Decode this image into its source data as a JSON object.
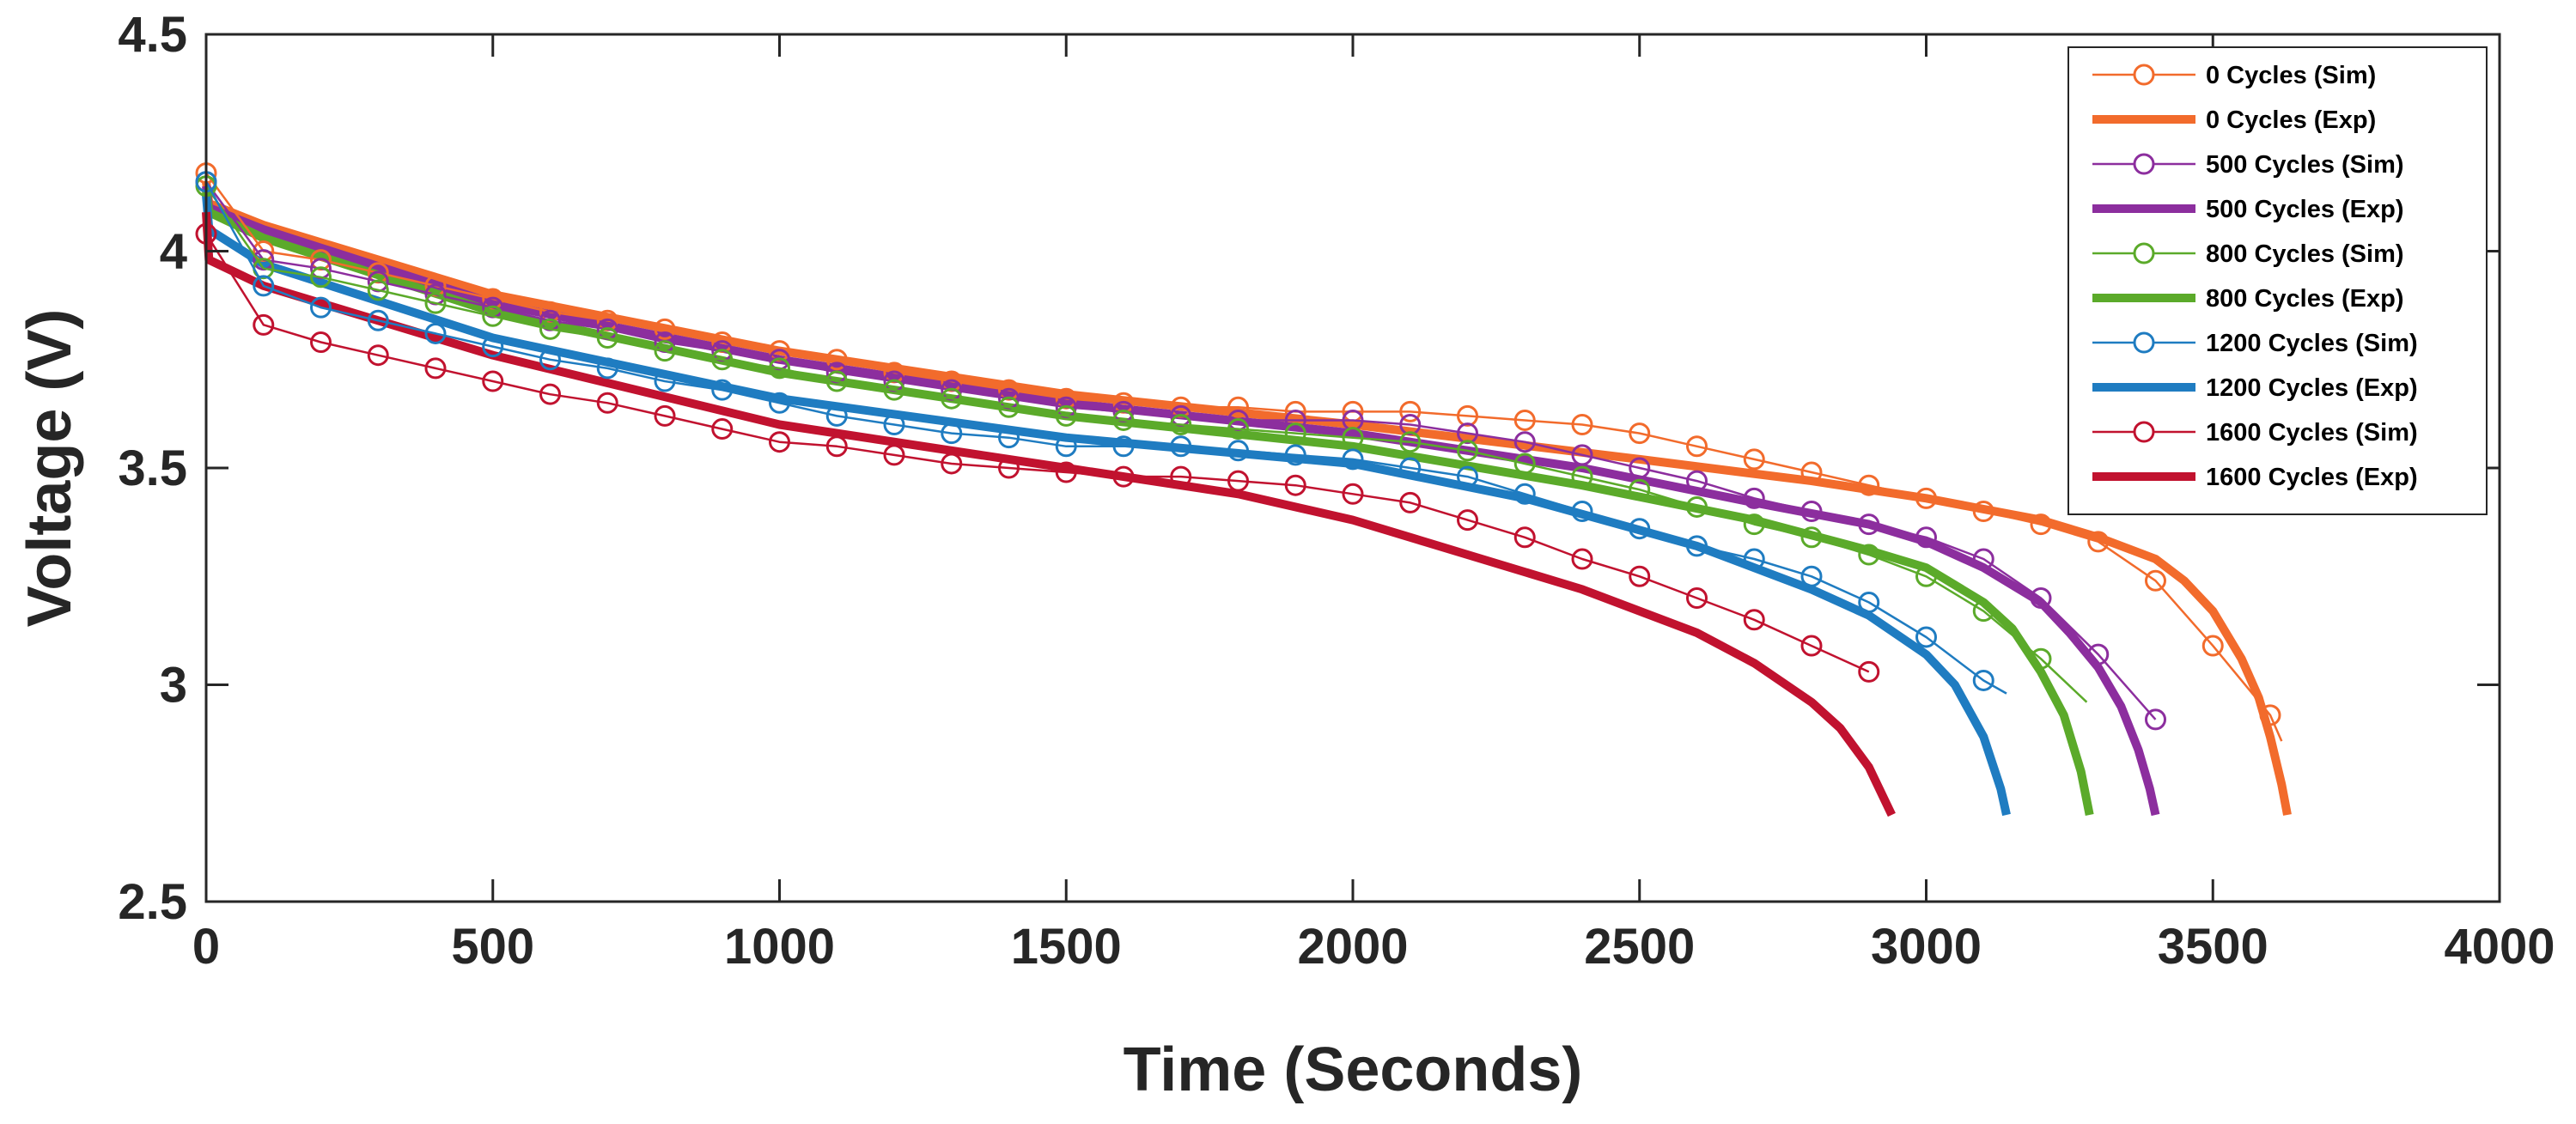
{
  "chart_data": {
    "type": "line",
    "title": "",
    "xlabel": "Time (Seconds)",
    "ylabel": "Voltage (V)",
    "xlim": [
      0,
      4000
    ],
    "ylim": [
      2.5,
      4.5
    ],
    "xticks": [
      0,
      500,
      1000,
      1500,
      2000,
      2500,
      3000,
      3500,
      4000
    ],
    "xtick_labels": [
      "0",
      "500",
      "1000",
      "1500",
      "2000",
      "2500",
      "3000",
      "3500",
      "4000"
    ],
    "yticks": [
      2.5,
      3,
      3.5,
      4,
      4.5
    ],
    "ytick_labels": [
      "2.5",
      "3",
      "3.5",
      "4",
      "4.5"
    ],
    "grid": false,
    "legend_position": "top-right",
    "series": [
      {
        "name": "0 Cycles (Sim)",
        "style": "sim",
        "color": "#F26B2C",
        "x": [
          0,
          100,
          200,
          300,
          400,
          500,
          600,
          700,
          800,
          900,
          1000,
          1100,
          1200,
          1300,
          1400,
          1500,
          1600,
          1700,
          1800,
          1900,
          2000,
          2100,
          2200,
          2300,
          2400,
          2500,
          2600,
          2700,
          2800,
          2900,
          3000,
          3100,
          3200,
          3300,
          3400,
          3500,
          3600,
          3620
        ],
        "y": [
          4.18,
          4.0,
          3.98,
          3.95,
          3.92,
          3.89,
          3.86,
          3.84,
          3.82,
          3.79,
          3.77,
          3.75,
          3.72,
          3.7,
          3.68,
          3.66,
          3.65,
          3.64,
          3.64,
          3.63,
          3.63,
          3.63,
          3.62,
          3.61,
          3.6,
          3.58,
          3.55,
          3.52,
          3.49,
          3.46,
          3.43,
          3.4,
          3.37,
          3.33,
          3.24,
          3.09,
          2.93,
          2.87
        ]
      },
      {
        "name": "0 Cycles (Exp)",
        "style": "exp",
        "color": "#F26B2C",
        "x": [
          0,
          5,
          100,
          500,
          1000,
          1500,
          2000,
          2500,
          2800,
          3000,
          3200,
          3300,
          3400,
          3450,
          3500,
          3550,
          3580,
          3600,
          3620,
          3630
        ],
        "y": [
          4.16,
          4.11,
          4.06,
          3.9,
          3.77,
          3.67,
          3.6,
          3.52,
          3.47,
          3.43,
          3.38,
          3.34,
          3.29,
          3.24,
          3.17,
          3.06,
          2.97,
          2.88,
          2.77,
          2.7
        ]
      },
      {
        "name": "500 Cycles (Sim)",
        "style": "sim",
        "color": "#8C2E9E",
        "x": [
          0,
          100,
          200,
          300,
          400,
          500,
          600,
          700,
          800,
          900,
          1000,
          1100,
          1200,
          1300,
          1400,
          1500,
          1600,
          1700,
          1800,
          1900,
          2000,
          2100,
          2200,
          2300,
          2400,
          2500,
          2600,
          2700,
          2800,
          2900,
          3000,
          3100,
          3200,
          3300,
          3400
        ],
        "y": [
          4.16,
          3.98,
          3.96,
          3.93,
          3.9,
          3.87,
          3.84,
          3.82,
          3.79,
          3.77,
          3.75,
          3.72,
          3.7,
          3.68,
          3.66,
          3.64,
          3.63,
          3.62,
          3.61,
          3.61,
          3.61,
          3.6,
          3.58,
          3.56,
          3.53,
          3.5,
          3.47,
          3.43,
          3.4,
          3.37,
          3.34,
          3.29,
          3.2,
          3.07,
          2.92
        ]
      },
      {
        "name": "500 Cycles (Exp)",
        "style": "exp",
        "color": "#8C2E9E",
        "x": [
          0,
          5,
          100,
          500,
          1000,
          1500,
          2000,
          2400,
          2700,
          2900,
          3000,
          3100,
          3200,
          3250,
          3300,
          3340,
          3370,
          3390,
          3400
        ],
        "y": [
          4.15,
          4.1,
          4.05,
          3.88,
          3.75,
          3.65,
          3.58,
          3.5,
          3.42,
          3.37,
          3.33,
          3.27,
          3.19,
          3.12,
          3.04,
          2.95,
          2.85,
          2.76,
          2.7
        ]
      },
      {
        "name": "800 Cycles (Sim)",
        "style": "sim",
        "color": "#5BAA2A",
        "x": [
          0,
          100,
          200,
          300,
          400,
          500,
          600,
          700,
          800,
          900,
          1000,
          1100,
          1200,
          1300,
          1400,
          1500,
          1600,
          1700,
          1800,
          1900,
          2000,
          2100,
          2200,
          2300,
          2400,
          2500,
          2600,
          2700,
          2800,
          2900,
          3000,
          3100,
          3200,
          3280
        ],
        "y": [
          4.15,
          3.96,
          3.94,
          3.91,
          3.88,
          3.85,
          3.82,
          3.8,
          3.77,
          3.75,
          3.73,
          3.7,
          3.68,
          3.66,
          3.64,
          3.62,
          3.61,
          3.6,
          3.59,
          3.58,
          3.57,
          3.56,
          3.54,
          3.51,
          3.48,
          3.45,
          3.41,
          3.37,
          3.34,
          3.3,
          3.25,
          3.17,
          3.06,
          2.96
        ]
      },
      {
        "name": "800 Cycles (Exp)",
        "style": "exp",
        "color": "#5BAA2A",
        "x": [
          0,
          5,
          100,
          500,
          1000,
          1500,
          2000,
          2400,
          2700,
          2900,
          3000,
          3100,
          3150,
          3200,
          3240,
          3270,
          3285
        ],
        "y": [
          4.14,
          4.09,
          4.03,
          3.86,
          3.72,
          3.62,
          3.55,
          3.46,
          3.38,
          3.31,
          3.27,
          3.19,
          3.13,
          3.03,
          2.93,
          2.8,
          2.7
        ]
      },
      {
        "name": "1200 Cycles (Sim)",
        "style": "sim",
        "color": "#1F7CC1",
        "x": [
          0,
          100,
          200,
          300,
          400,
          500,
          600,
          700,
          800,
          900,
          1000,
          1100,
          1200,
          1300,
          1400,
          1500,
          1600,
          1700,
          1800,
          1900,
          2000,
          2100,
          2200,
          2300,
          2400,
          2500,
          2600,
          2700,
          2800,
          2900,
          3000,
          3100,
          3140
        ],
        "y": [
          4.16,
          3.92,
          3.87,
          3.84,
          3.81,
          3.78,
          3.75,
          3.73,
          3.7,
          3.68,
          3.65,
          3.62,
          3.6,
          3.58,
          3.57,
          3.55,
          3.55,
          3.55,
          3.54,
          3.53,
          3.52,
          3.5,
          3.48,
          3.44,
          3.4,
          3.36,
          3.32,
          3.29,
          3.25,
          3.19,
          3.11,
          3.01,
          2.98
        ]
      },
      {
        "name": "1200 Cycles (Exp)",
        "style": "exp",
        "color": "#1F7CC1",
        "x": [
          0,
          5,
          100,
          500,
          1000,
          1500,
          2000,
          2300,
          2600,
          2800,
          2900,
          3000,
          3050,
          3100,
          3130,
          3140
        ],
        "y": [
          4.13,
          4.05,
          3.97,
          3.8,
          3.66,
          3.57,
          3.51,
          3.43,
          3.32,
          3.22,
          3.16,
          3.07,
          3.0,
          2.88,
          2.76,
          2.7
        ]
      },
      {
        "name": "1600 Cycles (Sim)",
        "style": "sim",
        "color": "#C1122F",
        "x": [
          0,
          100,
          200,
          300,
          400,
          500,
          600,
          700,
          800,
          900,
          1000,
          1100,
          1200,
          1300,
          1400,
          1500,
          1600,
          1700,
          1800,
          1900,
          2000,
          2100,
          2200,
          2300,
          2400,
          2500,
          2600,
          2700,
          2800,
          2900
        ],
        "y": [
          4.04,
          3.83,
          3.79,
          3.76,
          3.73,
          3.7,
          3.67,
          3.65,
          3.62,
          3.59,
          3.56,
          3.55,
          3.53,
          3.51,
          3.5,
          3.49,
          3.48,
          3.48,
          3.47,
          3.46,
          3.44,
          3.42,
          3.38,
          3.34,
          3.29,
          3.25,
          3.2,
          3.15,
          3.09,
          3.03
        ]
      },
      {
        "name": "1600 Cycles (Exp)",
        "style": "exp",
        "color": "#C1122F",
        "x": [
          0,
          5,
          100,
          500,
          1000,
          1500,
          1800,
          2000,
          2200,
          2400,
          2600,
          2700,
          2800,
          2850,
          2900,
          2940
        ],
        "y": [
          4.09,
          3.98,
          3.92,
          3.76,
          3.6,
          3.5,
          3.44,
          3.38,
          3.3,
          3.22,
          3.12,
          3.05,
          2.96,
          2.9,
          2.81,
          2.7
        ]
      }
    ]
  }
}
